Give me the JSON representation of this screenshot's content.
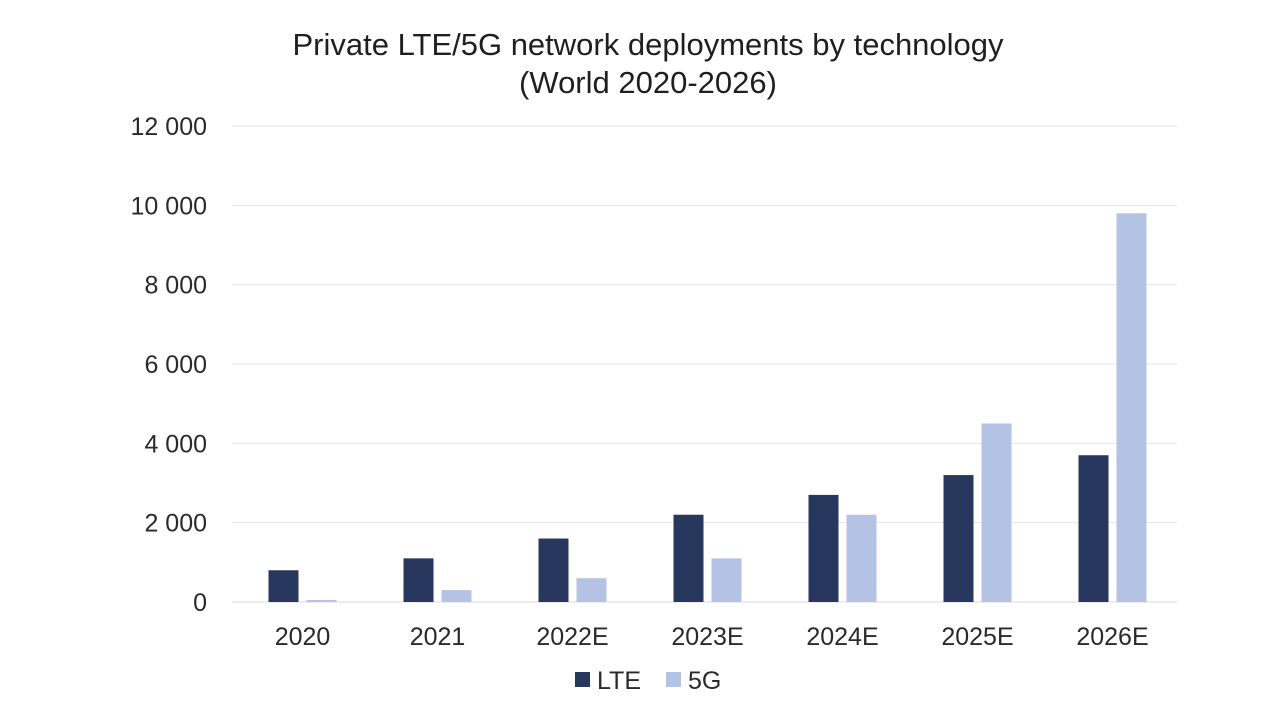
{
  "chart_data": {
    "type": "bar",
    "title": "Private LTE/5G network deployments by technology",
    "subtitle": "(World 2020-2026)",
    "xlabel": "",
    "ylabel": "",
    "categories": [
      "2020",
      "2021",
      "2022E",
      "2023E",
      "2024E",
      "2025E",
      "2026E"
    ],
    "series": [
      {
        "name": "LTE",
        "color": "#27375e",
        "values": [
          800,
          1100,
          1600,
          2200,
          2700,
          3200,
          3700
        ]
      },
      {
        "name": "5G",
        "color": "#b4c3e3",
        "values": [
          50,
          300,
          600,
          1100,
          2200,
          4500,
          9800
        ]
      }
    ],
    "ylim": [
      0,
      12000
    ],
    "yticks": [
      0,
      2000,
      4000,
      6000,
      8000,
      10000,
      12000
    ],
    "ytick_labels": [
      "0",
      "2 000",
      "4 000",
      "6 000",
      "8 000",
      "10 000",
      "12 000"
    ],
    "grid": true,
    "legend_position": "bottom-center"
  }
}
